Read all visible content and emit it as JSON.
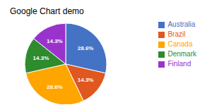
{
  "chart_data": {
    "type": "pie",
    "title": "Google Chart demo",
    "categories": [
      "Australia",
      "Brazil",
      "Canada",
      "Denmark",
      "Finland"
    ],
    "values": [
      28.6,
      14.3,
      28.6,
      14.3,
      14.3
    ],
    "value_labels": [
      "28.6%",
      "14.3%",
      "28.6%",
      "14.3%",
      "14.3%"
    ],
    "colors": [
      "#4472C4",
      "#E05720",
      "#FFA500",
      "#2E8B2E",
      "#9933CC"
    ],
    "data_labels": true,
    "legend": "right"
  }
}
